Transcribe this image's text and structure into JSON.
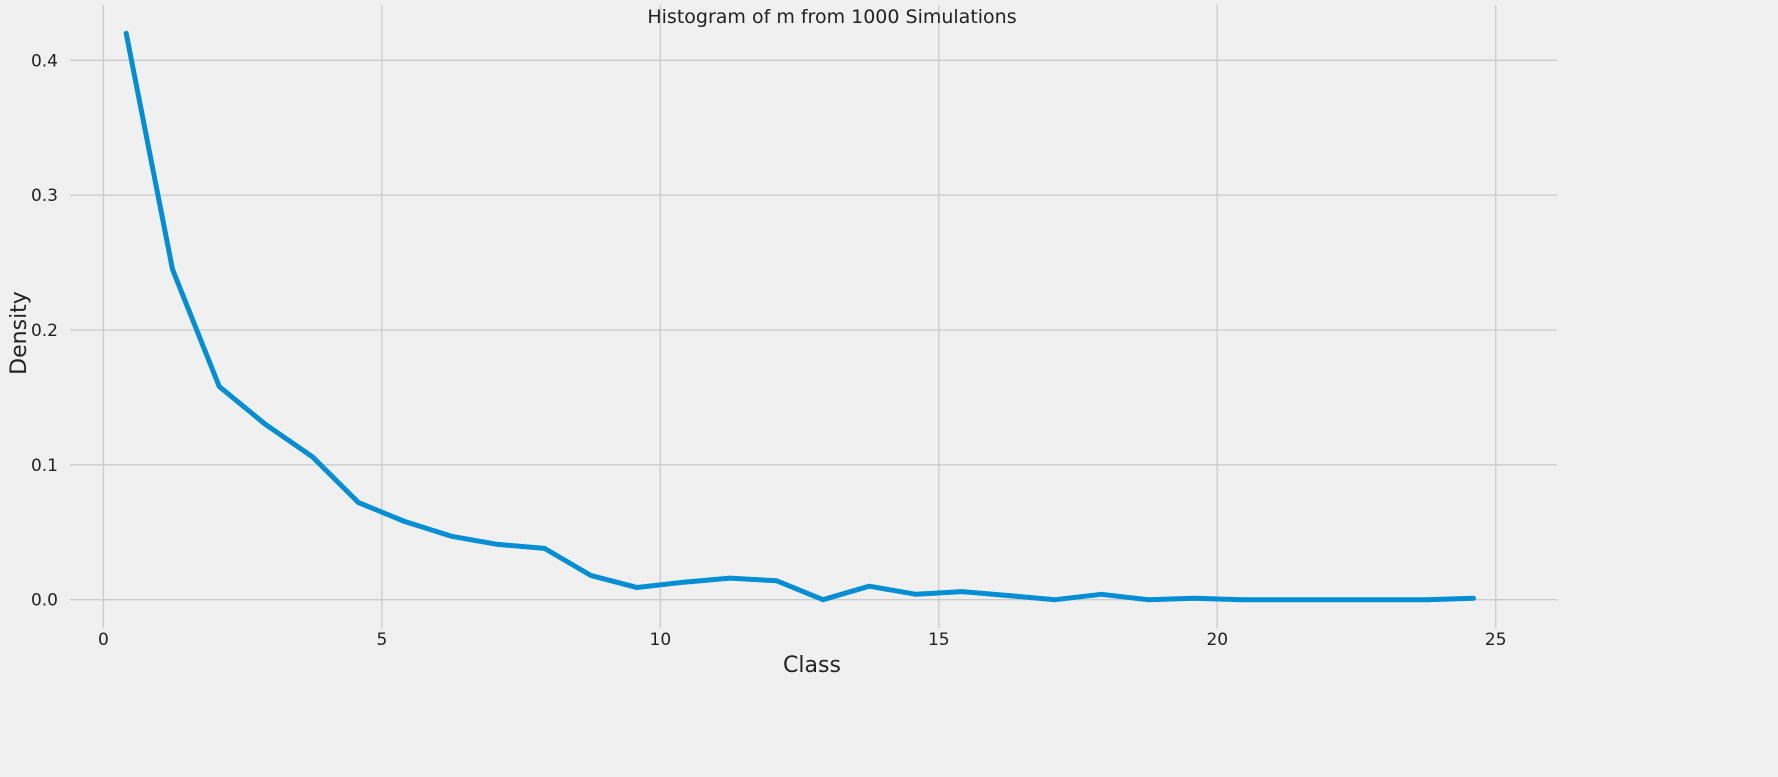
{
  "chart_data": {
    "type": "line",
    "title": "Histogram of m from 1000 Simulations",
    "xlabel": "Class",
    "ylabel": "Density",
    "xlim": [
      -0.6,
      26.1
    ],
    "ylim": [
      -0.021,
      0.441
    ],
    "xticks": [
      0,
      5,
      10,
      15,
      20,
      25
    ],
    "yticks": [
      0.0,
      0.1,
      0.2,
      0.3,
      0.4
    ],
    "xtick_labels": [
      "0",
      "5",
      "10",
      "15",
      "20",
      "25"
    ],
    "ytick_labels": [
      "0.0",
      "0.1",
      "0.2",
      "0.3",
      "0.4"
    ],
    "grid": true,
    "legend": "none",
    "series": [
      {
        "color": "#008fd5",
        "x": [
          0.41,
          1.24,
          2.08,
          2.91,
          3.75,
          4.58,
          5.41,
          6.25,
          7.08,
          7.92,
          8.75,
          9.58,
          10.42,
          11.25,
          12.09,
          12.92,
          13.75,
          14.59,
          15.42,
          16.26,
          17.09,
          17.92,
          18.76,
          19.59,
          20.43,
          21.26,
          22.09,
          22.93,
          23.76,
          24.6
        ],
        "y": [
          0.42,
          0.245,
          0.158,
          0.13,
          0.106,
          0.072,
          0.058,
          0.047,
          0.041,
          0.038,
          0.018,
          0.009,
          0.013,
          0.016,
          0.014,
          0.0,
          0.01,
          0.004,
          0.006,
          0.003,
          0.0,
          0.004,
          0.0,
          0.001,
          0.0,
          0.0,
          0.0,
          0.0,
          0.0,
          0.001
        ]
      }
    ]
  }
}
